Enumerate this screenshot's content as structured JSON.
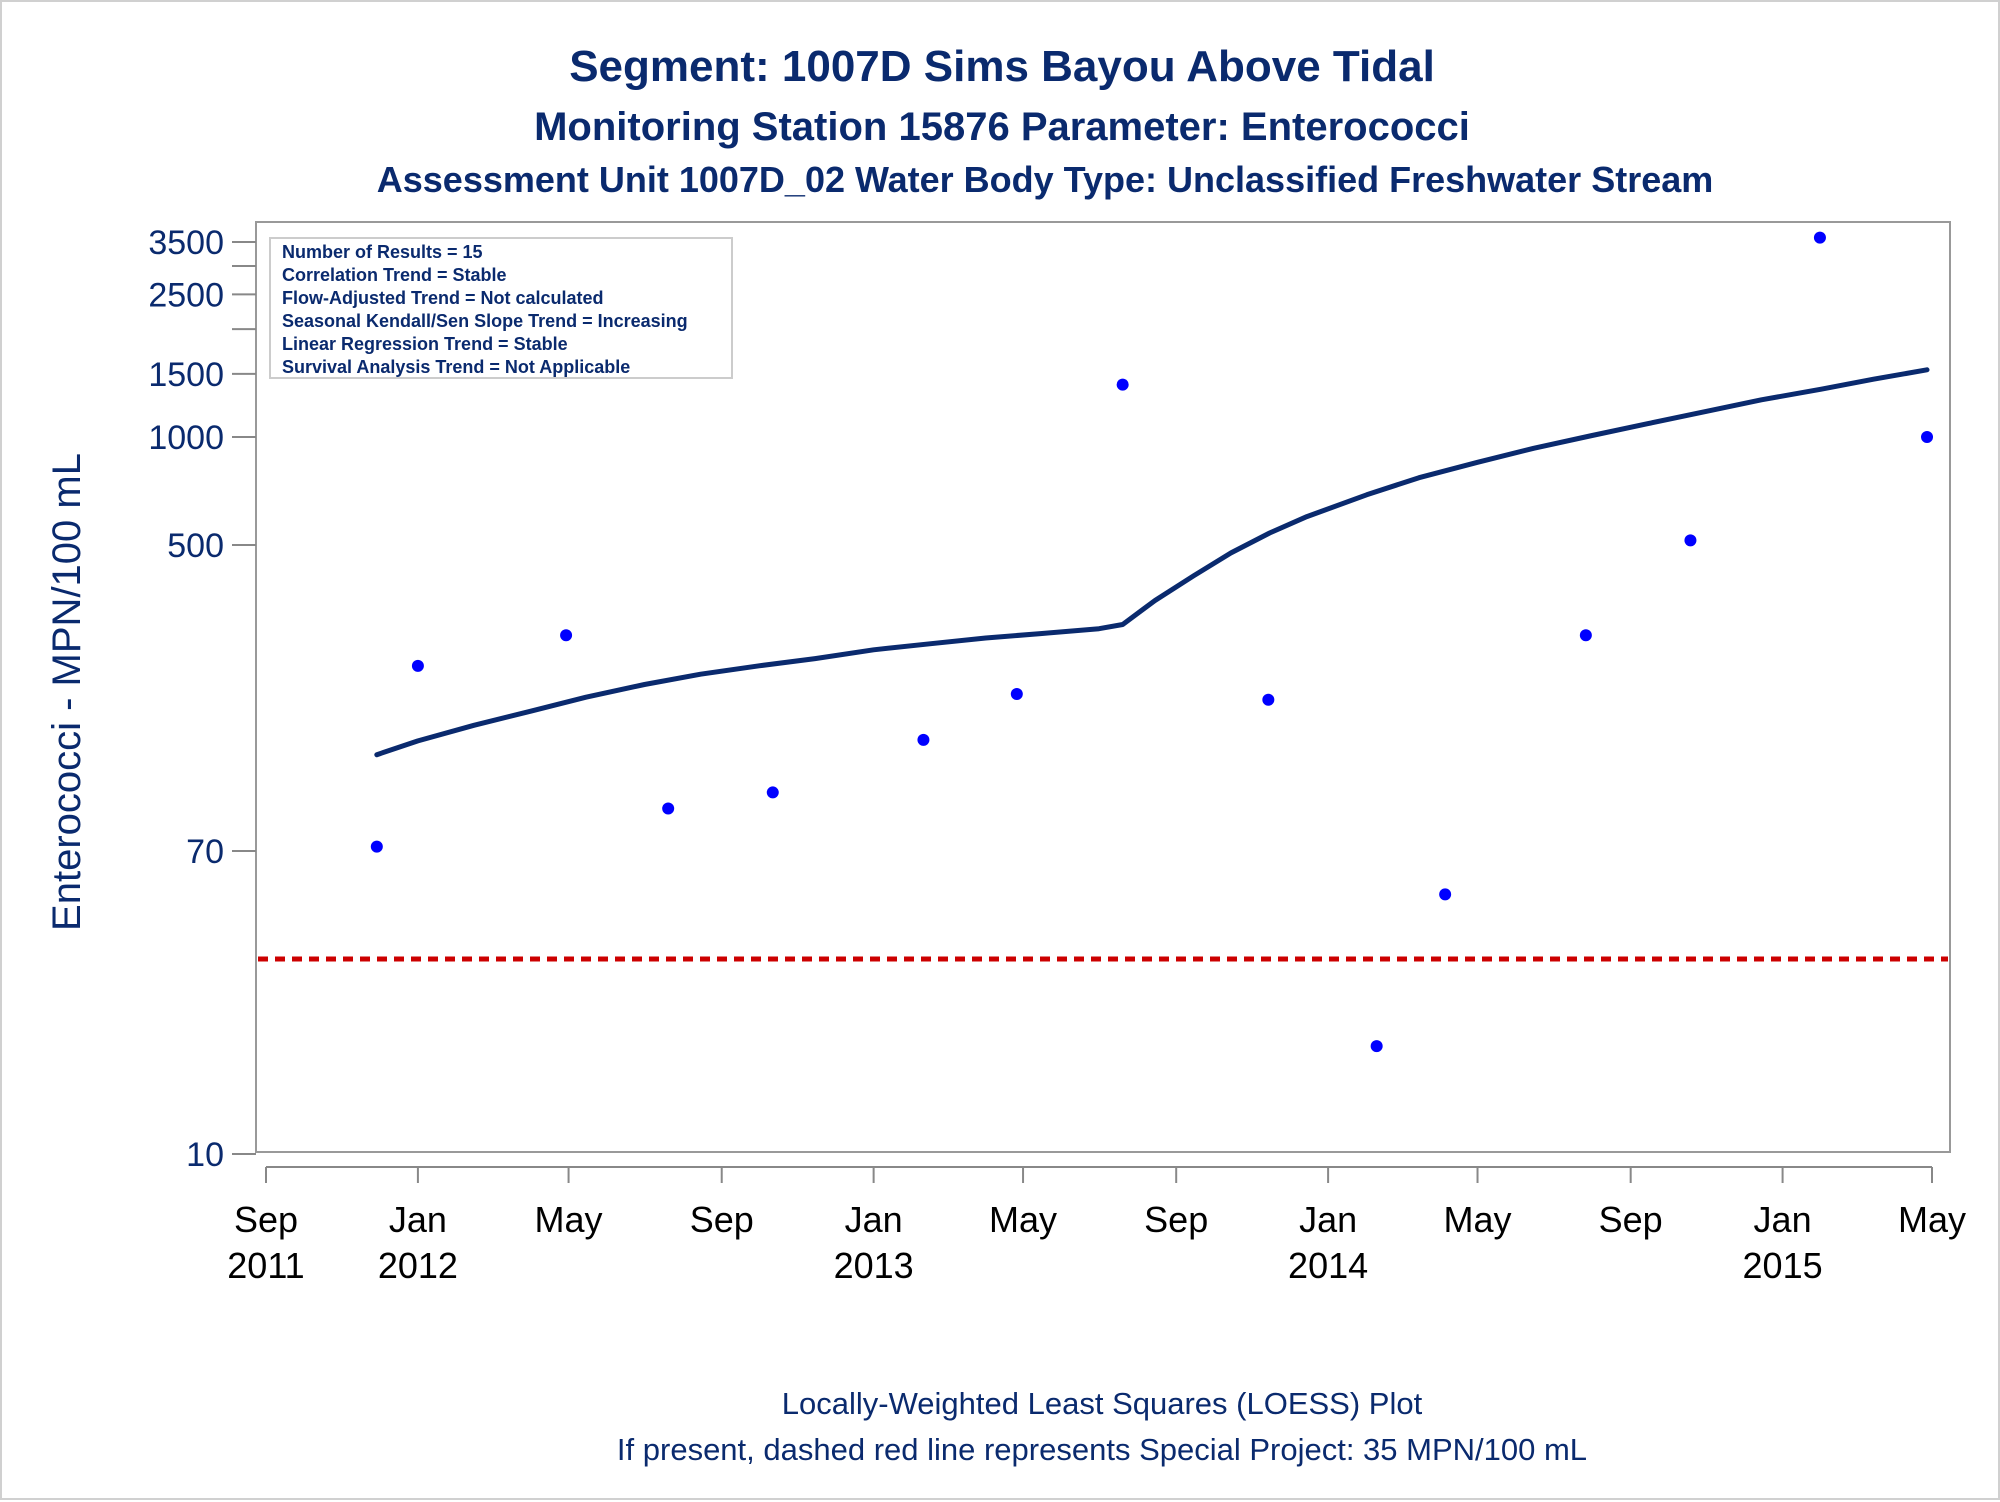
{
  "chart_data": {
    "type": "scatter",
    "title": "Segment: 1007D  Sims Bayou Above Tidal",
    "subtitle": "Monitoring Station 15876 Parameter: Enterococci",
    "subtitle2": "Assessment Unit 1007D_02   Water Body Type: Unclassified Freshwater Stream",
    "ylabel": "Enterococci - MPN/100 mL",
    "yscale": "log",
    "ylim": [
      10,
      3800
    ],
    "y_ticks": [
      10,
      70,
      500,
      1000,
      1500,
      2500,
      3500
    ],
    "y_minor_ticks": [
      2000,
      3000
    ],
    "xlim": [
      "2011-09-01",
      "2015-05-01"
    ],
    "x_ticks": [
      {
        "date": "2011-09-01",
        "line1": "Sep",
        "line2": "2011"
      },
      {
        "date": "2012-01-01",
        "line1": "Jan",
        "line2": "2012"
      },
      {
        "date": "2012-05-01",
        "line1": "May",
        "line2": ""
      },
      {
        "date": "2012-09-01",
        "line1": "Sep",
        "line2": ""
      },
      {
        "date": "2013-01-01",
        "line1": "Jan",
        "line2": "2013"
      },
      {
        "date": "2013-05-01",
        "line1": "May",
        "line2": ""
      },
      {
        "date": "2013-09-01",
        "line1": "Sep",
        "line2": ""
      },
      {
        "date": "2014-01-01",
        "line1": "Jan",
        "line2": "2014"
      },
      {
        "date": "2014-05-01",
        "line1": "May",
        "line2": ""
      },
      {
        "date": "2014-09-01",
        "line1": "Sep",
        "line2": ""
      },
      {
        "date": "2015-01-01",
        "line1": "Jan",
        "line2": "2015"
      },
      {
        "date": "2015-05-01",
        "line1": "May",
        "line2": ""
      }
    ],
    "grid": false,
    "legend_position": "top-left",
    "stats_box": [
      "Number of Results = 15",
      "Correlation Trend = Stable",
      "Flow-Adjusted Trend = Not calculated",
      "Seasonal Kendall/Sen Slope Trend = Increasing",
      "Linear Regression Trend = Stable",
      "Survival Analysis Trend = Not Applicable"
    ],
    "points": [
      {
        "x": "2011-11-29",
        "y": 72
      },
      {
        "x": "2012-01-01",
        "y": 230
      },
      {
        "x": "2012-04-29",
        "y": 280
      },
      {
        "x": "2012-07-20",
        "y": 92
      },
      {
        "x": "2012-10-12",
        "y": 102
      },
      {
        "x": "2013-02-10",
        "y": 143
      },
      {
        "x": "2013-04-26",
        "y": 192
      },
      {
        "x": "2013-07-20",
        "y": 1400
      },
      {
        "x": "2013-11-14",
        "y": 185
      },
      {
        "x": "2014-02-09",
        "y": 20
      },
      {
        "x": "2014-04-05",
        "y": 53
      },
      {
        "x": "2014-07-27",
        "y": 280
      },
      {
        "x": "2014-10-19",
        "y": 515
      },
      {
        "x": "2015-01-31",
        "y": 3600
      },
      {
        "x": "2015-04-27",
        "y": 1000
      }
    ],
    "loess": [
      {
        "x": "2011-11-29",
        "y": 130
      },
      {
        "x": "2012-01-01",
        "y": 142
      },
      {
        "x": "2012-02-15",
        "y": 157
      },
      {
        "x": "2012-04-01",
        "y": 172
      },
      {
        "x": "2012-05-15",
        "y": 188
      },
      {
        "x": "2012-07-01",
        "y": 204
      },
      {
        "x": "2012-08-15",
        "y": 218
      },
      {
        "x": "2012-10-01",
        "y": 230
      },
      {
        "x": "2012-11-15",
        "y": 241
      },
      {
        "x": "2013-01-01",
        "y": 255
      },
      {
        "x": "2013-02-15",
        "y": 265
      },
      {
        "x": "2013-04-01",
        "y": 275
      },
      {
        "x": "2013-05-15",
        "y": 283
      },
      {
        "x": "2013-07-01",
        "y": 292
      },
      {
        "x": "2013-07-20",
        "y": 300
      },
      {
        "x": "2013-08-15",
        "y": 350
      },
      {
        "x": "2013-09-15",
        "y": 410
      },
      {
        "x": "2013-10-15",
        "y": 475
      },
      {
        "x": "2013-11-15",
        "y": 540
      },
      {
        "x": "2013-12-15",
        "y": 600
      },
      {
        "x": "2014-02-01",
        "y": 690
      },
      {
        "x": "2014-03-15",
        "y": 770
      },
      {
        "x": "2014-05-01",
        "y": 850
      },
      {
        "x": "2014-06-15",
        "y": 930
      },
      {
        "x": "2014-08-01",
        "y": 1010
      },
      {
        "x": "2014-09-15",
        "y": 1090
      },
      {
        "x": "2014-11-01",
        "y": 1180
      },
      {
        "x": "2014-12-15",
        "y": 1270
      },
      {
        "x": "2015-02-01",
        "y": 1360
      },
      {
        "x": "2015-03-15",
        "y": 1450
      },
      {
        "x": "2015-04-27",
        "y": 1540
      }
    ],
    "reference_line": {
      "y": 35,
      "color": "#cc0000"
    },
    "colors": {
      "points": "#0000ff",
      "loess": "#0a2a6e",
      "text": "#0a2a6e",
      "axis": "#888888"
    }
  },
  "footnotes": [
    "Locally-Weighted Least Squares (LOESS) Plot",
    "If present, dashed red line represents Special Project: 35 MPN/100 mL"
  ]
}
